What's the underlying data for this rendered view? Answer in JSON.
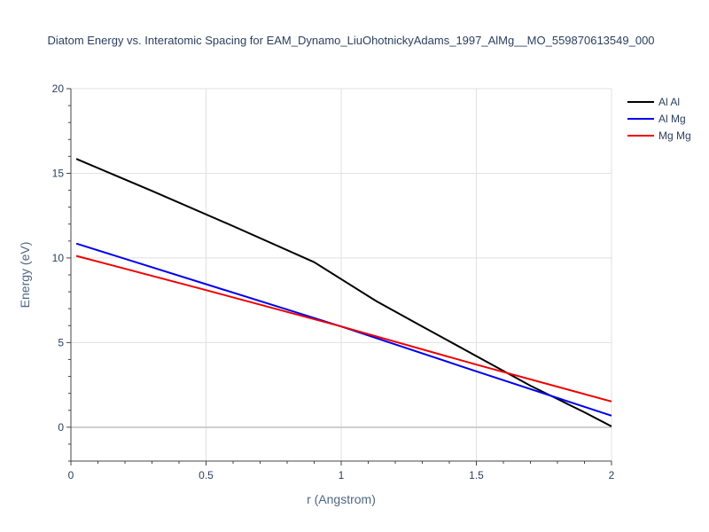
{
  "chart_data": {
    "type": "line",
    "title": "Diatom Energy vs. Interatomic Spacing for EAM_Dynamo_LiuOhotnickyAdams_1997_AlMg__MO_559870613549_000",
    "xlabel": "r (Angstrom)",
    "ylabel": "Energy (eV)",
    "xlim": [
      0,
      2
    ],
    "ylim": [
      -2,
      20
    ],
    "xticks": [
      0,
      0.5,
      1,
      1.5,
      2
    ],
    "xtick_labels": [
      "0",
      "0.5",
      "1",
      "1.5",
      "2"
    ],
    "yticks": [
      0,
      5,
      10,
      15,
      20
    ],
    "ytick_labels": [
      "0",
      "5",
      "10",
      "15",
      "20"
    ],
    "grid": true,
    "legend_position": "top-right",
    "series": [
      {
        "name": "Al Al",
        "color": "#000000",
        "x": [
          0.02,
          0.3,
          0.6,
          0.9,
          1.0,
          1.13,
          1.3,
          1.5,
          1.7,
          1.9,
          2.0
        ],
        "y": [
          15.85,
          13.96,
          11.88,
          9.75,
          8.75,
          7.45,
          5.95,
          4.2,
          2.45,
          0.88,
          0.05
        ]
      },
      {
        "name": "Al Mg",
        "color": "#0000ee",
        "x": [
          0.02,
          0.5,
          1.0,
          1.5,
          2.0
        ],
        "y": [
          10.85,
          8.45,
          5.95,
          3.3,
          0.68
        ]
      },
      {
        "name": "Mg Mg",
        "color": "#ee0000",
        "x": [
          0.02,
          0.5,
          1.0,
          1.5,
          2.0
        ],
        "y": [
          10.12,
          8.1,
          5.95,
          3.7,
          1.52
        ]
      }
    ]
  }
}
